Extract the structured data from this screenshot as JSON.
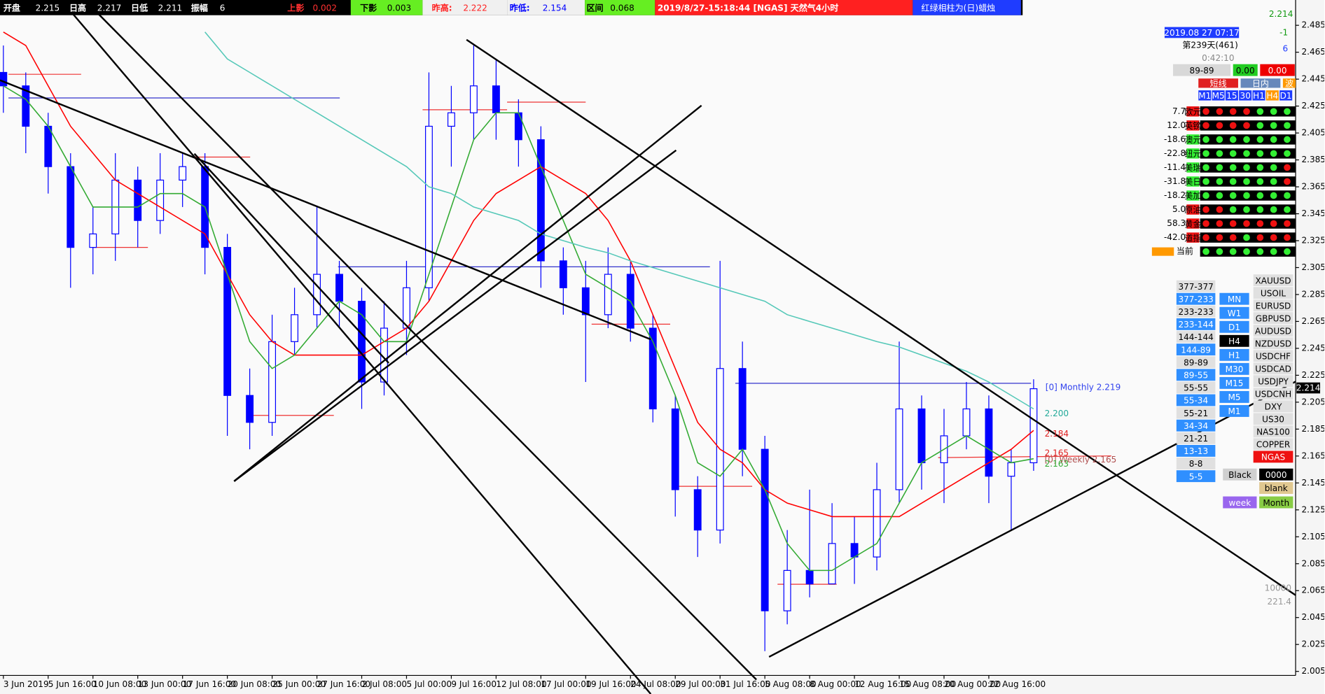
{
  "top_bar": {
    "items": [
      {
        "label": "开盘",
        "value": 2.215
      },
      {
        "label": "日高",
        "value": 2.217
      },
      {
        "label": "日低",
        "value": 2.211
      },
      {
        "label": "振幅",
        "value": 6
      },
      {
        "label": "上影",
        "value": 0.002
      },
      {
        "label": "下影",
        "value": 0.003
      },
      {
        "label": "昨高:",
        "value": 2.222
      },
      {
        "label": "昨低:",
        "value": 2.154
      },
      {
        "label": "区间",
        "value": 0.068
      }
    ],
    "symbol": "2019/8/27-15:18:44 [NGAS] 天然气4小时",
    "note": "红绿相柱为(日)蜡烛"
  },
  "chart_data": {
    "type": "candlestick",
    "categories": [
      "3 Jun 2019",
      null,
      "5 Jun 16:00",
      null,
      "10 Jun 08:00",
      null,
      "13 Jun 00:00",
      null,
      "17 Jun 16:00",
      null,
      "20 Jun 08:00",
      null,
      "25 Jun 00:00",
      null,
      "27 Jun 16:00",
      null,
      "2 Jul 08:00",
      null,
      "5 Jul 00:00",
      null,
      "9 Jul 16:00",
      null,
      "12 Jul 08:00",
      null,
      "17 Jul 00:00",
      null,
      "19 Jul 16:00",
      null,
      "24 Jul 08:00",
      null,
      "29 Jul 00:00",
      null,
      "31 Jul 16:00",
      null,
      "5 Aug 08:00",
      null,
      "8 Aug 00:00",
      null,
      "12 Aug 16:00",
      null,
      "15 Aug 08:00",
      null,
      "20 Aug 00:00",
      null,
      "22 Aug 16:00",
      null,
      null
    ],
    "open": [
      2.45,
      2.44,
      2.41,
      2.38,
      2.32,
      2.33,
      2.37,
      2.34,
      2.37,
      2.38,
      2.32,
      2.21,
      2.19,
      2.25,
      2.27,
      2.3,
      2.28,
      2.22,
      2.26,
      2.29,
      2.41,
      2.42,
      2.44,
      2.42,
      2.4,
      2.31,
      2.29,
      2.27,
      2.3,
      2.26,
      2.2,
      2.14,
      2.11,
      2.23,
      2.17,
      2.05,
      2.08,
      2.07,
      2.1,
      2.09,
      2.14,
      2.2,
      2.16,
      2.18,
      2.2,
      2.15,
      2.16
    ],
    "high": [
      2.47,
      2.45,
      2.42,
      2.39,
      2.35,
      2.39,
      2.38,
      2.39,
      2.39,
      2.39,
      2.33,
      2.23,
      2.27,
      2.29,
      2.35,
      2.31,
      2.29,
      2.28,
      2.31,
      2.45,
      2.44,
      2.47,
      2.46,
      2.43,
      2.41,
      2.32,
      2.31,
      2.32,
      2.31,
      2.27,
      2.21,
      2.15,
      2.31,
      2.25,
      2.18,
      2.11,
      2.14,
      2.13,
      2.12,
      2.16,
      2.25,
      2.21,
      2.2,
      2.22,
      2.21,
      2.17,
      2.222
    ],
    "low": [
      2.42,
      2.39,
      2.36,
      2.29,
      2.3,
      2.31,
      2.32,
      2.33,
      2.35,
      2.3,
      2.18,
      2.17,
      2.18,
      2.24,
      2.26,
      2.26,
      2.2,
      2.21,
      2.24,
      2.28,
      2.38,
      2.4,
      2.4,
      2.38,
      2.29,
      2.27,
      2.22,
      2.26,
      2.25,
      2.19,
      2.12,
      2.09,
      2.1,
      2.15,
      2.02,
      2.04,
      2.06,
      2.07,
      2.07,
      2.08,
      2.13,
      2.14,
      2.13,
      2.17,
      2.13,
      2.11,
      2.154
    ],
    "close": [
      2.44,
      2.41,
      2.38,
      2.32,
      2.33,
      2.37,
      2.34,
      2.37,
      2.38,
      2.32,
      2.21,
      2.19,
      2.25,
      2.27,
      2.3,
      2.28,
      2.22,
      2.26,
      2.29,
      2.41,
      2.42,
      2.44,
      2.42,
      2.4,
      2.31,
      2.29,
      2.27,
      2.3,
      2.26,
      2.2,
      2.14,
      2.11,
      2.23,
      2.17,
      2.05,
      2.08,
      2.07,
      2.1,
      2.09,
      2.14,
      2.2,
      2.16,
      2.18,
      2.2,
      2.15,
      2.16,
      2.215
    ],
    "color": "#0000ff",
    "moving_averages": [
      {
        "color": "#ff0000",
        "values": [
          2.48,
          2.47,
          2.44,
          2.41,
          2.39,
          2.37,
          2.36,
          2.35,
          2.34,
          2.33,
          2.3,
          2.27,
          2.25,
          2.24,
          2.24,
          2.24,
          2.24,
          2.25,
          2.26,
          2.28,
          2.31,
          2.34,
          2.36,
          2.37,
          2.38,
          2.37,
          2.36,
          2.34,
          2.31,
          2.27,
          2.23,
          2.19,
          2.17,
          2.16,
          2.14,
          2.13,
          2.125,
          2.12,
          2.12,
          2.12,
          2.12,
          2.13,
          2.14,
          2.15,
          2.16,
          2.17,
          2.184
        ]
      },
      {
        "color": "#33aa33",
        "values": [
          2.44,
          2.43,
          2.41,
          2.38,
          2.35,
          2.35,
          2.35,
          2.36,
          2.36,
          2.35,
          2.3,
          2.25,
          2.23,
          2.24,
          2.26,
          2.28,
          2.27,
          2.25,
          2.25,
          2.3,
          2.35,
          2.4,
          2.42,
          2.42,
          2.38,
          2.34,
          2.3,
          2.29,
          2.28,
          2.25,
          2.21,
          2.16,
          2.15,
          2.17,
          2.14,
          2.1,
          2.08,
          2.08,
          2.09,
          2.1,
          2.13,
          2.16,
          2.17,
          2.18,
          2.17,
          2.16,
          2.163
        ]
      },
      {
        "color": "#55c8b8",
        "values": [
          null,
          null,
          null,
          null,
          null,
          null,
          null,
          null,
          null,
          2.48,
          2.46,
          2.45,
          2.44,
          2.43,
          2.42,
          2.41,
          2.4,
          2.39,
          2.38,
          2.365,
          2.36,
          2.35,
          2.345,
          2.34,
          2.33,
          2.325,
          2.32,
          2.316,
          2.31,
          2.305,
          2.3,
          2.295,
          2.29,
          2.285,
          2.28,
          2.27,
          2.265,
          2.26,
          2.255,
          2.25,
          2.246,
          2.24,
          2.234,
          2.228,
          2.22,
          2.21,
          2.2
        ]
      }
    ],
    "ylim": [
      2.002,
      2.49
    ],
    "yticks": [
      2.485,
      2.465,
      2.445,
      2.425,
      2.405,
      2.385,
      2.365,
      2.345,
      2.325,
      2.305,
      2.285,
      2.265,
      2.245,
      2.225,
      2.205,
      2.185,
      2.165,
      2.145,
      2.125,
      2.105,
      2.085,
      2.065,
      2.045,
      2.025,
      2.005
    ],
    "grid": false,
    "last_price": 2.214,
    "annotations": [
      "[0] Monthly 2.219",
      "2.200",
      "2.184",
      "2.165",
      "[0] Weekly 2.165",
      "2.163"
    ]
  },
  "panel": {
    "price": 2.214,
    "change": -1,
    "points": 6,
    "time": "2019.08 27 07:17",
    "day": "第239天(461)",
    "countdown": "0:42:10",
    "ratio": "89-89",
    "val1": "0.00",
    "val2": "0.00",
    "modes": [
      "短线",
      "日内",
      "波"
    ],
    "timeframes": [
      "M1",
      "M5",
      "15",
      "30",
      "H1",
      "H4",
      "D1"
    ],
    "strength": [
      {
        "value": "7.7",
        "name": "欧元"
      },
      {
        "value": "12.0",
        "name": "英镑"
      },
      {
        "value": "-18.6",
        "name": "澳元"
      },
      {
        "value": "-22.8",
        "name": "纽元"
      },
      {
        "value": "-11.4",
        "name": "美瑞"
      },
      {
        "value": "-31.8",
        "name": "美日"
      },
      {
        "value": "-18.2",
        "name": "美加"
      },
      {
        "value": "5.0",
        "name": "原油"
      },
      {
        "value": "58.3",
        "name": "黄金"
      },
      {
        "value": "-42.0",
        "name": "道指"
      }
    ],
    "current": "当前",
    "fib_pairs": [
      "377-377",
      "377-233",
      "233-233",
      "233-144",
      "144-144",
      "144-89",
      "89-89",
      "89-55",
      "55-55",
      "55-34",
      "55-21",
      "34-34",
      "21-21",
      "13-13",
      "8-8",
      "5-5"
    ],
    "periods": [
      "MN",
      "W1",
      "D1",
      "H4",
      "H1",
      "M30",
      "M15",
      "M5",
      "M1"
    ],
    "symbols": [
      "XAUUSD",
      "USOIL",
      "EURUSD",
      "GBPUSD",
      "AUDUSD",
      "NZDUSD",
      "USDCHF",
      "USDCAD",
      "USDJPY",
      "USDCNH",
      "DXY",
      "US30",
      "NAS100",
      "COPPER",
      "NGAS"
    ],
    "buttons": [
      "Black",
      "0000",
      "blank",
      "week",
      "Month"
    ],
    "footer": [
      "10000",
      "221.4"
    ]
  }
}
